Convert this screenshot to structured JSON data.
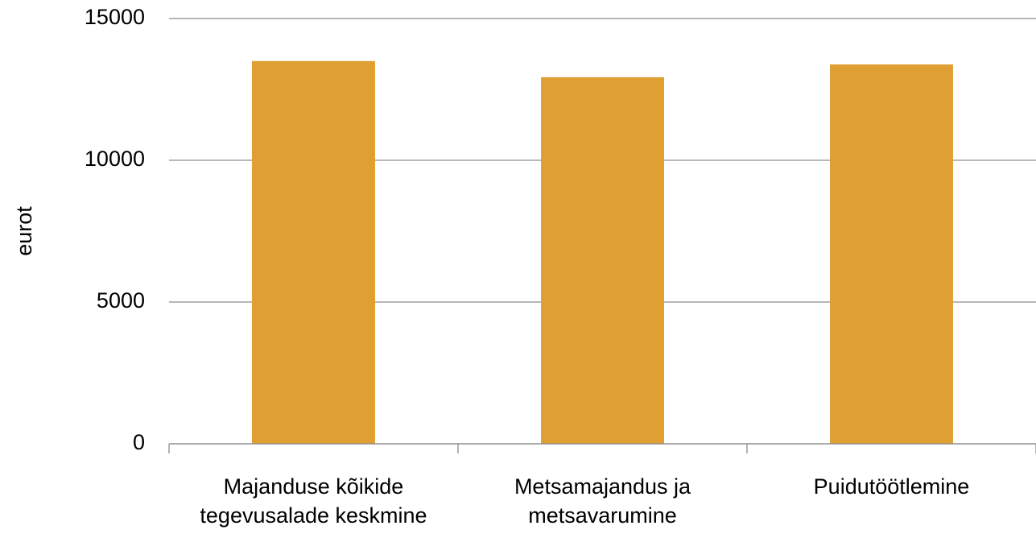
{
  "chart_data": {
    "type": "bar",
    "y_label": "eurot",
    "categories": [
      "Majanduse kõikide tegevusalade keskmine",
      "Metsamajandus ja metsavarumine",
      "Puidutöötlemine"
    ],
    "values": [
      13500,
      12930,
      13380
    ],
    "color": "#df9f33",
    "ylim": [
      0,
      15000
    ],
    "yticks": [
      0,
      5000,
      10000,
      15000
    ],
    "grid": true
  }
}
